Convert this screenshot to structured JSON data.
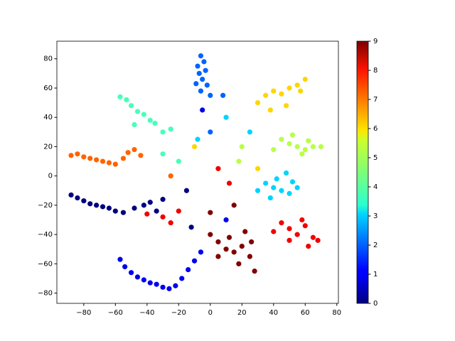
{
  "chart_data": {
    "type": "scatter",
    "xlim": [
      -97,
      81
    ],
    "ylim": [
      -87,
      92
    ],
    "xticks": [
      {
        "value": -80,
        "label": "−80"
      },
      {
        "value": -60,
        "label": "−60"
      },
      {
        "value": -40,
        "label": "−40"
      },
      {
        "value": -20,
        "label": "−20"
      },
      0,
      20,
      40,
      60,
      80
    ],
    "yticks": [
      {
        "value": -80,
        "label": "−80"
      },
      {
        "value": -60,
        "label": "−60"
      },
      {
        "value": -40,
        "label": "−40"
      },
      {
        "value": -20,
        "label": "−20"
      },
      0,
      20,
      40,
      60,
      80
    ],
    "cmap": "jet",
    "clim": [
      0,
      9
    ],
    "cticks": [
      0,
      1,
      2,
      3,
      4,
      5,
      6,
      7,
      8,
      9
    ],
    "x": [
      -88,
      -84,
      -80,
      -76,
      -72,
      -68,
      -64,
      -60,
      -55,
      -48,
      -42,
      -38,
      -34,
      -30,
      -57,
      -54,
      -50,
      -46,
      -42,
      -38,
      -34,
      -30,
      -26,
      -22,
      -18,
      -14,
      -10,
      -6,
      -6,
      -4,
      -8,
      -3,
      -7,
      -5,
      -9,
      -2,
      -6,
      0,
      35,
      40,
      45,
      50,
      55,
      42,
      48,
      38,
      52,
      30,
      -57,
      -53,
      -50,
      -46,
      -42,
      -38,
      -35,
      -30,
      -48,
      -25,
      45,
      50,
      55,
      60,
      65,
      70,
      58,
      52,
      62,
      40,
      30,
      35,
      40,
      45,
      50,
      55,
      60,
      57,
      48,
      38,
      -88,
      -84,
      -80,
      -76,
      -72,
      -68,
      -64,
      -60,
      -55,
      -52,
      -48,
      -44,
      40,
      45,
      50,
      55,
      60,
      65,
      68,
      50,
      58,
      62,
      -30,
      -25,
      -40,
      -20,
      0,
      5,
      10,
      15,
      20,
      25,
      28,
      18,
      12,
      22,
      5,
      26,
      -20,
      -10,
      0,
      10,
      20,
      -15,
      5,
      15,
      -5,
      25,
      -25,
      10,
      -30,
      30,
      0,
      -12,
      8,
      18,
      -8,
      12
    ],
    "y": [
      -13,
      -15,
      -17,
      -19,
      -20,
      -21,
      -22,
      -24,
      -25,
      -22,
      -20,
      -18,
      -24,
      -16,
      -57,
      -62,
      -66,
      -69,
      -71,
      -73,
      -74,
      -76,
      -77,
      -75,
      -70,
      -64,
      -58,
      -52,
      82,
      78,
      75,
      72,
      70,
      66,
      63,
      62,
      58,
      55,
      -5,
      -8,
      -10,
      -12,
      -8,
      -2,
      2,
      -15,
      -4,
      -10,
      54,
      52,
      48,
      44,
      42,
      38,
      36,
      30,
      35,
      32,
      25,
      22,
      20,
      18,
      20,
      20,
      15,
      28,
      24,
      18,
      50,
      55,
      58,
      56,
      60,
      62,
      66,
      58,
      48,
      45,
      14,
      15,
      13,
      12,
      11,
      10,
      9,
      8,
      12,
      16,
      18,
      14,
      -38,
      -32,
      -36,
      -40,
      -34,
      -42,
      -44,
      -44,
      -30,
      -48,
      -28,
      -32,
      -26,
      -24,
      -40,
      -45,
      -50,
      -52,
      -48,
      -55,
      -65,
      -60,
      -42,
      -38,
      -55,
      -45,
      10,
      20,
      30,
      40,
      20,
      -10,
      5,
      -20,
      45,
      30,
      0,
      -30,
      15,
      5,
      -25,
      -35,
      55,
      10,
      25,
      -5
    ],
    "c": [
      0,
      0,
      0,
      0,
      0,
      0,
      0,
      0,
      0,
      0,
      0,
      0,
      0,
      0,
      1,
      1,
      1,
      1,
      1,
      1,
      1,
      1,
      1,
      1,
      1,
      1,
      1,
      1,
      2,
      2,
      2,
      2,
      2,
      2,
      2,
      2,
      2,
      2,
      3,
      3,
      3,
      3,
      3,
      3,
      3,
      3,
      3,
      3,
      4,
      4,
      4,
      4,
      4,
      4,
      4,
      4,
      4,
      4,
      5,
      5,
      5,
      5,
      5,
      5,
      5,
      5,
      5,
      5,
      6,
      6,
      6,
      6,
      6,
      6,
      6,
      6,
      6,
      6,
      7,
      7,
      7,
      7,
      7,
      7,
      7,
      7,
      7,
      7,
      7,
      7,
      8,
      8,
      8,
      8,
      8,
      8,
      8,
      8,
      8,
      8,
      8,
      8,
      8,
      8,
      9,
      9,
      9,
      9,
      9,
      9,
      9,
      9,
      9,
      9,
      9,
      9,
      4,
      6,
      2,
      3,
      5,
      0,
      8,
      9,
      1,
      3,
      7,
      1,
      4,
      6,
      9,
      0,
      2,
      5,
      3,
      8
    ]
  }
}
